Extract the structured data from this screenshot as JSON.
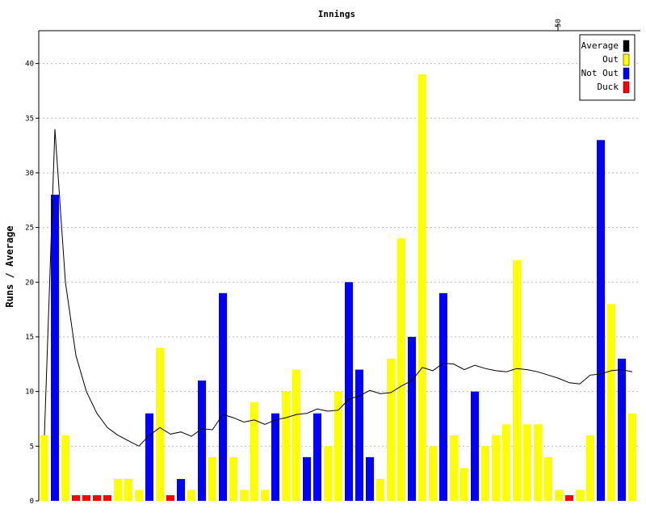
{
  "chart_data": {
    "type": "bar",
    "title": "Innings",
    "xlabel": "",
    "ylabel": "Runs / Average",
    "ylim": [
      0,
      43
    ],
    "yticks": [
      0,
      5,
      10,
      15,
      20,
      25,
      30,
      35,
      40
    ],
    "xtick_labels": [
      {
        "innings": 50,
        "label": "50"
      }
    ],
    "grid": "horizontal dotted",
    "legend_position": "top-right",
    "legend": [
      {
        "name": "Average",
        "color": "#000000"
      },
      {
        "name": "Out",
        "color": "#ffff00"
      },
      {
        "name": "Not Out",
        "color": "#0000ff"
      },
      {
        "name": "Duck",
        "color": "#ff0000"
      }
    ],
    "bars": [
      {
        "innings": 1,
        "runs": 6,
        "kind": "Out"
      },
      {
        "innings": 2,
        "runs": 28,
        "kind": "Not Out"
      },
      {
        "innings": 3,
        "runs": 6,
        "kind": "Out"
      },
      {
        "innings": 4,
        "runs": 0,
        "kind": "Duck"
      },
      {
        "innings": 5,
        "runs": 0,
        "kind": "Duck"
      },
      {
        "innings": 6,
        "runs": 0,
        "kind": "Duck"
      },
      {
        "innings": 7,
        "runs": 0,
        "kind": "Duck"
      },
      {
        "innings": 8,
        "runs": 2,
        "kind": "Out"
      },
      {
        "innings": 9,
        "runs": 2,
        "kind": "Out"
      },
      {
        "innings": 10,
        "runs": 1,
        "kind": "Out"
      },
      {
        "innings": 11,
        "runs": 8,
        "kind": "Not Out"
      },
      {
        "innings": 12,
        "runs": 14,
        "kind": "Out"
      },
      {
        "innings": 13,
        "runs": 0,
        "kind": "Duck"
      },
      {
        "innings": 14,
        "runs": 2,
        "kind": "Not Out"
      },
      {
        "innings": 15,
        "runs": 1,
        "kind": "Out"
      },
      {
        "innings": 16,
        "runs": 11,
        "kind": "Not Out"
      },
      {
        "innings": 17,
        "runs": 4,
        "kind": "Out"
      },
      {
        "innings": 18,
        "runs": 19,
        "kind": "Not Out"
      },
      {
        "innings": 19,
        "runs": 4,
        "kind": "Out"
      },
      {
        "innings": 20,
        "runs": 1,
        "kind": "Out"
      },
      {
        "innings": 21,
        "runs": 9,
        "kind": "Out"
      },
      {
        "innings": 22,
        "runs": 1,
        "kind": "Out"
      },
      {
        "innings": 23,
        "runs": 8,
        "kind": "Not Out"
      },
      {
        "innings": 24,
        "runs": 10,
        "kind": "Out"
      },
      {
        "innings": 25,
        "runs": 12,
        "kind": "Out"
      },
      {
        "innings": 26,
        "runs": 4,
        "kind": "Not Out"
      },
      {
        "innings": 27,
        "runs": 8,
        "kind": "Not Out"
      },
      {
        "innings": 28,
        "runs": 5,
        "kind": "Out"
      },
      {
        "innings": 29,
        "runs": 10,
        "kind": "Out"
      },
      {
        "innings": 30,
        "runs": 20,
        "kind": "Not Out"
      },
      {
        "innings": 31,
        "runs": 12,
        "kind": "Not Out"
      },
      {
        "innings": 32,
        "runs": 4,
        "kind": "Not Out"
      },
      {
        "innings": 33,
        "runs": 2,
        "kind": "Out"
      },
      {
        "innings": 34,
        "runs": 13,
        "kind": "Out"
      },
      {
        "innings": 35,
        "runs": 24,
        "kind": "Out"
      },
      {
        "innings": 36,
        "runs": 15,
        "kind": "Not Out"
      },
      {
        "innings": 37,
        "runs": 39,
        "kind": "Out"
      },
      {
        "innings": 38,
        "runs": 5,
        "kind": "Out"
      },
      {
        "innings": 39,
        "runs": 19,
        "kind": "Not Out"
      },
      {
        "innings": 40,
        "runs": 6,
        "kind": "Out"
      },
      {
        "innings": 41,
        "runs": 3,
        "kind": "Out"
      },
      {
        "innings": 42,
        "runs": 10,
        "kind": "Not Out"
      },
      {
        "innings": 43,
        "runs": 5,
        "kind": "Out"
      },
      {
        "innings": 44,
        "runs": 6,
        "kind": "Out"
      },
      {
        "innings": 45,
        "runs": 7,
        "kind": "Out"
      },
      {
        "innings": 46,
        "runs": 22,
        "kind": "Out"
      },
      {
        "innings": 47,
        "runs": 7,
        "kind": "Out"
      },
      {
        "innings": 48,
        "runs": 7,
        "kind": "Out"
      },
      {
        "innings": 49,
        "runs": 4,
        "kind": "Out"
      },
      {
        "innings": 50,
        "runs": 1,
        "kind": "Out"
      },
      {
        "innings": 51,
        "runs": 0,
        "kind": "Duck"
      },
      {
        "innings": 52,
        "runs": 1,
        "kind": "Out"
      },
      {
        "innings": 53,
        "runs": 6,
        "kind": "Out"
      },
      {
        "innings": 54,
        "runs": 33,
        "kind": "Not Out"
      },
      {
        "innings": 55,
        "runs": 18,
        "kind": "Out"
      },
      {
        "innings": 56,
        "runs": 13,
        "kind": "Not Out"
      },
      {
        "innings": 57,
        "runs": 8,
        "kind": "Out"
      }
    ],
    "average": [
      6,
      34,
      20,
      13.3,
      10,
      8,
      6.7,
      6,
      5.5,
      5,
      6,
      6.7,
      6.1,
      6.3,
      5.9,
      6.6,
      6.5,
      7.9,
      7.6,
      7.2,
      7.4,
      7,
      7.4,
      7.6,
      7.9,
      8,
      8.4,
      8.2,
      8.3,
      9.3,
      9.6,
      10.1,
      9.8,
      9.9,
      10.5,
      11,
      12.2,
      11.9,
      12.6,
      12.5,
      12,
      12.4,
      12.1,
      11.9,
      11.8,
      12.1,
      12,
      11.8,
      11.5,
      11.2,
      10.8,
      10.7,
      11.5,
      11.6,
      11.9,
      12,
      11.8
    ]
  }
}
